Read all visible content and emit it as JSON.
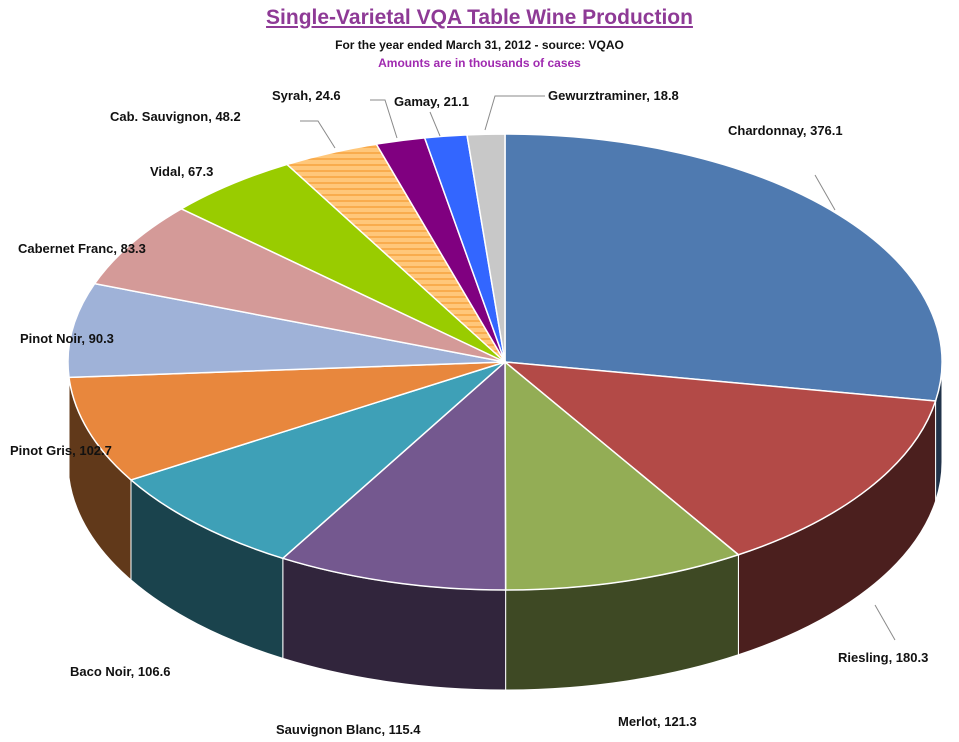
{
  "chart_data": {
    "type": "pie",
    "title": "Single-Varietal VQA Table Wine Production",
    "subtitle": "For the year ended March 31, 2012 - source:  VQAO",
    "note": "Amounts are in thousands of cases",
    "slices": [
      {
        "label": "Chardonnay",
        "value": 376.1,
        "text": "Chardonnay,  376.1",
        "color": "#4f7ab0"
      },
      {
        "label": "Riesling",
        "value": 180.3,
        "text": "Riesling,  180.3",
        "color": "#b34a47"
      },
      {
        "label": "Merlot",
        "value": 121.3,
        "text": "Merlot,  121.3",
        "color": "#93ad55"
      },
      {
        "label": "Sauvignon Blanc",
        "value": 115.4,
        "text": "Sauvignon Blanc,  115.4",
        "color": "#74588f"
      },
      {
        "label": "Baco Noir",
        "value": 106.6,
        "text": "Baco Noir,  106.6",
        "color": "#3ea0b7"
      },
      {
        "label": "Pinot Gris",
        "value": 102.7,
        "text": "Pinot Gris,  102.7",
        "color": "#e8873d"
      },
      {
        "label": "Pinot Noir",
        "value": 90.3,
        "text": "Pinot Noir,  90.3",
        "color": "#9fb2d8"
      },
      {
        "label": "Cabernet Franc",
        "value": 83.3,
        "text": "Cabernet Franc,  83.3",
        "color": "#d49a98"
      },
      {
        "label": "Vidal",
        "value": 67.3,
        "text": "Vidal,  67.3",
        "color": "#99cc00"
      },
      {
        "label": "Cab. Sauvignon",
        "value": 48.2,
        "text": "Cab. Sauvignon,  48.2",
        "color": "#ffc77a"
      },
      {
        "label": "Syrah",
        "value": 24.6,
        "text": "Syrah,  24.6",
        "color": "#800080"
      },
      {
        "label": "Gamay",
        "value": 21.1,
        "text": "Gamay,  21.1",
        "color": "#3366ff"
      },
      {
        "label": "Gewurztraminer",
        "value": 18.8,
        "text": "Gewurztraminer,  18.8",
        "color": "#c8c8c8"
      }
    ]
  }
}
